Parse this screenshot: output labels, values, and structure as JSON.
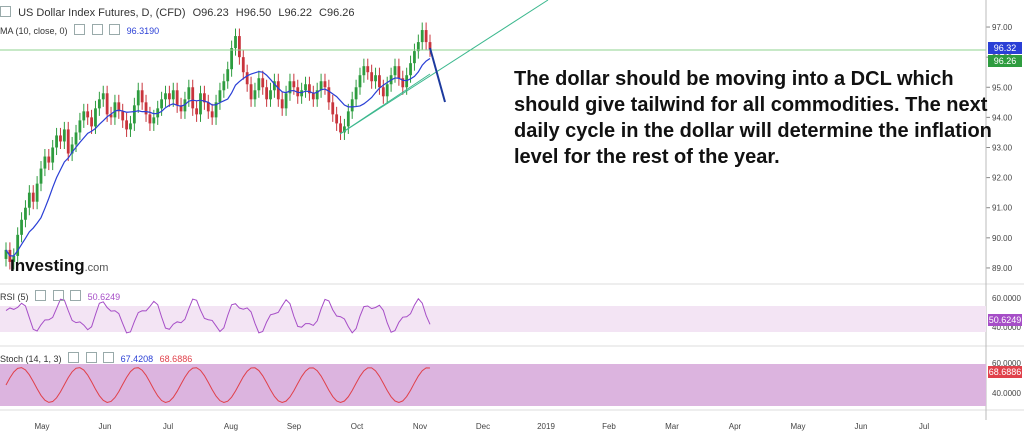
{
  "header": {
    "symbol_label": "US Dollar Index Futures, D, (CFD)",
    "ohlc": {
      "open_label": "O",
      "open": "96.23",
      "high_label": "H",
      "high": "96.50",
      "low_label": "L",
      "low": "96.22",
      "close_label": "C",
      "close": "96.26"
    },
    "ma_label": "MA (10, close, 0)",
    "ma_value": "96.3190"
  },
  "annotation": "The dollar should be moving into a DCL which should give tailwind for all commodities. The next daily cycle in the dollar will determine the inflation level for the rest of the year.",
  "brand": {
    "name": "Investing",
    "suffix": ".com"
  },
  "rsi": {
    "label": "RSI (5)",
    "value": "50.6249",
    "ticks": [
      "60.0000",
      "40.0000"
    ],
    "tag": "50.6249"
  },
  "stoch": {
    "label": "Stoch (14, 1, 3)",
    "k_value": "67.4208",
    "d_value": "68.6886",
    "ticks": [
      "60.0000",
      "40.0000"
    ],
    "tag": "68.6886"
  },
  "price_tags": {
    "ma": "96.32",
    "last": "96.26"
  },
  "colors": {
    "up": "#2e9c3f",
    "down": "#c8343c",
    "ma": "#2a3fd6",
    "trend": "#3cb88e",
    "arrow": "#1c3a9e",
    "rsi_line": "#a64ec7",
    "rsi_band": "#f3e4f4",
    "stoch_k": "#e0404a",
    "stoch_band": "#dcb4df",
    "ma_tag": "#2a3fd6",
    "last_tag": "#2e9c3f"
  },
  "chart_data": {
    "type": "candlestick",
    "y_ticks": [
      "97.00",
      "96.00",
      "95.00",
      "94.00",
      "93.00",
      "92.00",
      "91.00",
      "90.00",
      "89.00"
    ],
    "ylim": [
      88.6,
      97.3
    ],
    "x_ticks": [
      "May",
      "Jun",
      "Jul",
      "Aug",
      "Sep",
      "Oct",
      "Nov",
      "Dec",
      "2019",
      "Feb",
      "Mar",
      "Apr",
      "May",
      "Jun",
      "Jul"
    ],
    "close_series": [
      89.6,
      89.2,
      89.4,
      90.1,
      90.6,
      91.0,
      91.5,
      91.2,
      91.8,
      92.3,
      92.7,
      92.5,
      93.0,
      93.4,
      93.2,
      93.6,
      92.8,
      93.1,
      93.5,
      93.9,
      94.2,
      94.0,
      93.7,
      94.3,
      94.6,
      94.8,
      94.1,
      94.0,
      94.5,
      94.2,
      93.9,
      93.6,
      93.8,
      94.4,
      94.9,
      94.5,
      94.1,
      93.8,
      94.0,
      94.3,
      94.6,
      94.8,
      94.6,
      94.9,
      94.4,
      94.2,
      94.6,
      95.0,
      94.3,
      94.1,
      94.8,
      94.5,
      94.2,
      94.0,
      94.5,
      94.9,
      95.2,
      95.6,
      96.3,
      96.7,
      96.0,
      95.5,
      95.1,
      94.6,
      94.9,
      95.3,
      95.0,
      94.6,
      94.9,
      95.2,
      94.6,
      94.3,
      94.8,
      95.2,
      95.0,
      94.7,
      94.9,
      95.1,
      94.8,
      94.6,
      94.9,
      95.2,
      95.0,
      94.5,
      94.1,
      93.8,
      93.5,
      93.7,
      94.2,
      94.6,
      95.0,
      95.4,
      95.7,
      95.5,
      95.2,
      95.4,
      95.0,
      94.7,
      95.1,
      95.4,
      95.7,
      95.3,
      95.0,
      95.4,
      95.8,
      96.2,
      96.5,
      96.9,
      96.5,
      96.26
    ],
    "rsi_band": [
      40,
      60
    ],
    "stoch_band": [
      20,
      80
    ]
  }
}
